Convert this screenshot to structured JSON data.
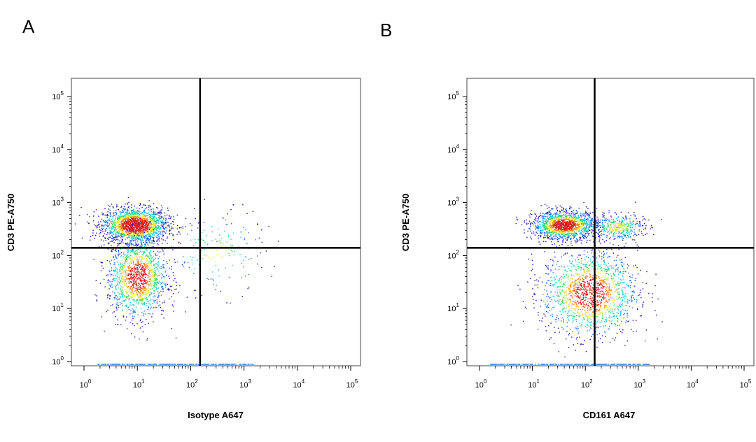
{
  "figure": {
    "panels": [
      {
        "letter": "A"
      },
      {
        "letter": "B"
      }
    ]
  },
  "chart_data": [
    {
      "type": "scatter",
      "panel": "A",
      "title": "",
      "xlabel": "Isotype A647",
      "ylabel": "CD3 PE-A750",
      "x_scale": "log",
      "y_scale": "log",
      "xlim": [
        1,
        100000
      ],
      "ylim": [
        1,
        100000
      ],
      "x_ticks": [
        {
          "base": "10",
          "exp": "0"
        },
        {
          "base": "10",
          "exp": "1"
        },
        {
          "base": "10",
          "exp": "2"
        },
        {
          "base": "10",
          "exp": "3"
        },
        {
          "base": "10",
          "exp": "4"
        },
        {
          "base": "10",
          "exp": "5"
        }
      ],
      "y_ticks": [
        {
          "base": "10",
          "exp": "0"
        },
        {
          "base": "10",
          "exp": "1"
        },
        {
          "base": "10",
          "exp": "2"
        },
        {
          "base": "10",
          "exp": "3"
        },
        {
          "base": "10",
          "exp": "4"
        },
        {
          "base": "10",
          "exp": "5"
        }
      ],
      "quadrant_gate": {
        "x": 150,
        "y": 140
      },
      "density_clusters": [
        {
          "x_center": 9,
          "y_center": 380,
          "spread_x_decades": 0.3,
          "spread_y_decades": 0.16,
          "share": 0.55
        },
        {
          "x_center": 10,
          "y_center": 40,
          "spread_x_decades": 0.28,
          "spread_y_decades": 0.38,
          "share": 0.4
        },
        {
          "x_center": 300,
          "y_center": 120,
          "spread_x_decades": 0.45,
          "spread_y_decades": 0.4,
          "share": 0.05
        }
      ],
      "colormap": [
        "#1a0fb0",
        "#1f6fe6",
        "#1fc8d8",
        "#38d66a",
        "#e6e63a",
        "#f08a1e",
        "#d81e1e"
      ],
      "grid": false,
      "legend": "none"
    },
    {
      "type": "scatter",
      "panel": "B",
      "title": "",
      "xlabel": "CD161 A647",
      "ylabel": "CD3 PE-A750",
      "x_scale": "log",
      "y_scale": "log",
      "xlim": [
        1,
        100000
      ],
      "ylim": [
        1,
        100000
      ],
      "x_ticks": [
        {
          "base": "10",
          "exp": "0"
        },
        {
          "base": "10",
          "exp": "1"
        },
        {
          "base": "10",
          "exp": "2"
        },
        {
          "base": "10",
          "exp": "3"
        },
        {
          "base": "10",
          "exp": "4"
        },
        {
          "base": "10",
          "exp": "5"
        }
      ],
      "y_ticks": [
        {
          "base": "10",
          "exp": "0"
        },
        {
          "base": "10",
          "exp": "1"
        },
        {
          "base": "10",
          "exp": "2"
        },
        {
          "base": "10",
          "exp": "3"
        },
        {
          "base": "10",
          "exp": "4"
        },
        {
          "base": "10",
          "exp": "5"
        }
      ],
      "quadrant_gate": {
        "x": 150,
        "y": 140
      },
      "density_clusters": [
        {
          "x_center": 40,
          "y_center": 380,
          "spread_x_decades": 0.3,
          "spread_y_decades": 0.13,
          "share": 0.45
        },
        {
          "x_center": 400,
          "y_center": 350,
          "spread_x_decades": 0.25,
          "spread_y_decades": 0.12,
          "share": 0.12
        },
        {
          "x_center": 120,
          "y_center": 20,
          "spread_x_decades": 0.45,
          "spread_y_decades": 0.4,
          "share": 0.43
        }
      ],
      "colormap": [
        "#1a0fb0",
        "#1f6fe6",
        "#1fc8d8",
        "#38d66a",
        "#e6e63a",
        "#f08a1e",
        "#d81e1e"
      ],
      "grid": false,
      "legend": "none"
    }
  ]
}
